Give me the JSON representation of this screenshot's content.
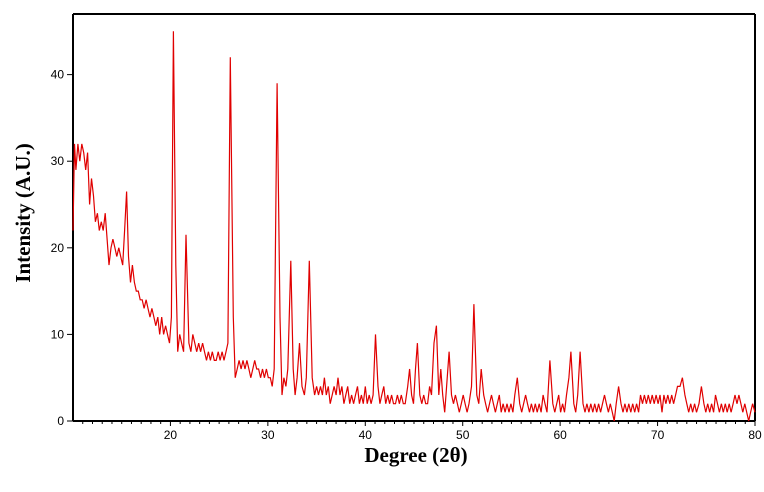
{
  "chart_data": {
    "type": "line",
    "title": "",
    "xlabel": "Degree (2θ)",
    "ylabel": "Intensity (A.U.)",
    "xlim": [
      10,
      80
    ],
    "ylim": [
      0,
      47
    ],
    "x_ticks": [
      20,
      30,
      40,
      50,
      60,
      70,
      80
    ],
    "y_ticks": [
      0,
      10,
      20,
      30,
      40
    ],
    "grid": false,
    "legend": "none",
    "line_color": "#e00000",
    "series": [
      {
        "name": "",
        "points": [
          [
            10.0,
            22
          ],
          [
            10.15,
            32
          ],
          [
            10.3,
            29
          ],
          [
            10.5,
            32
          ],
          [
            10.7,
            30
          ],
          [
            10.9,
            32
          ],
          [
            11.1,
            31
          ],
          [
            11.3,
            29
          ],
          [
            11.5,
            31
          ],
          [
            11.7,
            25
          ],
          [
            11.9,
            28
          ],
          [
            12.1,
            26
          ],
          [
            12.3,
            23
          ],
          [
            12.5,
            24
          ],
          [
            12.7,
            22
          ],
          [
            12.9,
            23
          ],
          [
            13.1,
            22
          ],
          [
            13.3,
            24
          ],
          [
            13.5,
            21
          ],
          [
            13.7,
            18
          ],
          [
            13.9,
            20
          ],
          [
            14.1,
            21
          ],
          [
            14.3,
            20
          ],
          [
            14.5,
            19
          ],
          [
            14.7,
            20
          ],
          [
            14.9,
            19
          ],
          [
            15.1,
            18
          ],
          [
            15.3,
            22
          ],
          [
            15.5,
            26.5
          ],
          [
            15.7,
            19
          ],
          [
            15.9,
            16
          ],
          [
            16.1,
            18
          ],
          [
            16.3,
            16
          ],
          [
            16.5,
            15
          ],
          [
            16.7,
            15
          ],
          [
            16.9,
            14
          ],
          [
            17.1,
            14
          ],
          [
            17.3,
            13
          ],
          [
            17.5,
            14
          ],
          [
            17.7,
            13
          ],
          [
            17.9,
            12
          ],
          [
            18.1,
            13
          ],
          [
            18.3,
            12
          ],
          [
            18.5,
            11
          ],
          [
            18.7,
            12
          ],
          [
            18.9,
            10
          ],
          [
            19.1,
            12
          ],
          [
            19.3,
            10
          ],
          [
            19.5,
            11
          ],
          [
            19.7,
            10
          ],
          [
            19.9,
            9
          ],
          [
            20.1,
            12
          ],
          [
            20.3,
            45
          ],
          [
            20.55,
            18
          ],
          [
            20.75,
            8
          ],
          [
            20.95,
            10
          ],
          [
            21.15,
            9
          ],
          [
            21.35,
            8
          ],
          [
            21.6,
            21.5
          ],
          [
            21.9,
            9
          ],
          [
            22.1,
            8
          ],
          [
            22.3,
            10
          ],
          [
            22.5,
            9
          ],
          [
            22.7,
            8
          ],
          [
            22.9,
            9
          ],
          [
            23.1,
            8
          ],
          [
            23.3,
            9
          ],
          [
            23.5,
            8
          ],
          [
            23.7,
            7
          ],
          [
            23.9,
            8
          ],
          [
            24.1,
            7
          ],
          [
            24.3,
            8
          ],
          [
            24.5,
            7
          ],
          [
            24.7,
            7
          ],
          [
            24.9,
            8
          ],
          [
            25.1,
            7
          ],
          [
            25.3,
            8
          ],
          [
            25.5,
            7
          ],
          [
            25.7,
            8
          ],
          [
            25.9,
            9
          ],
          [
            26.15,
            42
          ],
          [
            26.45,
            12
          ],
          [
            26.65,
            5
          ],
          [
            26.85,
            6
          ],
          [
            27.05,
            7
          ],
          [
            27.25,
            6
          ],
          [
            27.45,
            7
          ],
          [
            27.65,
            6
          ],
          [
            27.85,
            7
          ],
          [
            28.05,
            6
          ],
          [
            28.25,
            5
          ],
          [
            28.45,
            6
          ],
          [
            28.65,
            7
          ],
          [
            28.85,
            6
          ],
          [
            29.05,
            6
          ],
          [
            29.25,
            5
          ],
          [
            29.45,
            6
          ],
          [
            29.65,
            5
          ],
          [
            29.85,
            6
          ],
          [
            30.05,
            5
          ],
          [
            30.25,
            5
          ],
          [
            30.45,
            4
          ],
          [
            30.65,
            6
          ],
          [
            30.95,
            39
          ],
          [
            31.25,
            12
          ],
          [
            31.45,
            3
          ],
          [
            31.65,
            5
          ],
          [
            31.85,
            4
          ],
          [
            32.05,
            6
          ],
          [
            32.35,
            18.5
          ],
          [
            32.6,
            6
          ],
          [
            32.8,
            3
          ],
          [
            33.0,
            5
          ],
          [
            33.25,
            9
          ],
          [
            33.5,
            4
          ],
          [
            33.75,
            3
          ],
          [
            33.95,
            5
          ],
          [
            34.25,
            18.5
          ],
          [
            34.55,
            5
          ],
          [
            34.8,
            3
          ],
          [
            35.0,
            4
          ],
          [
            35.2,
            3
          ],
          [
            35.4,
            4
          ],
          [
            35.6,
            3
          ],
          [
            35.8,
            5
          ],
          [
            36.0,
            3
          ],
          [
            36.2,
            4
          ],
          [
            36.4,
            2
          ],
          [
            36.6,
            3
          ],
          [
            36.8,
            4
          ],
          [
            37.0,
            3
          ],
          [
            37.2,
            5
          ],
          [
            37.4,
            3
          ],
          [
            37.6,
            4
          ],
          [
            37.8,
            2
          ],
          [
            38.0,
            3
          ],
          [
            38.2,
            4
          ],
          [
            38.4,
            2
          ],
          [
            38.6,
            3
          ],
          [
            38.8,
            2
          ],
          [
            39.0,
            3
          ],
          [
            39.2,
            4
          ],
          [
            39.4,
            2
          ],
          [
            39.6,
            3
          ],
          [
            39.8,
            2
          ],
          [
            40.0,
            4
          ],
          [
            40.2,
            2
          ],
          [
            40.4,
            3
          ],
          [
            40.6,
            2
          ],
          [
            40.8,
            3
          ],
          [
            41.05,
            10
          ],
          [
            41.3,
            4
          ],
          [
            41.5,
            2
          ],
          [
            41.7,
            3
          ],
          [
            41.9,
            4
          ],
          [
            42.1,
            2
          ],
          [
            42.3,
            3
          ],
          [
            42.5,
            2
          ],
          [
            42.7,
            3
          ],
          [
            42.9,
            2
          ],
          [
            43.1,
            2
          ],
          [
            43.3,
            3
          ],
          [
            43.5,
            2
          ],
          [
            43.7,
            3
          ],
          [
            43.9,
            2
          ],
          [
            44.1,
            2
          ],
          [
            44.35,
            4
          ],
          [
            44.55,
            6
          ],
          [
            44.75,
            3
          ],
          [
            44.95,
            2
          ],
          [
            45.15,
            6
          ],
          [
            45.35,
            9
          ],
          [
            45.6,
            3
          ],
          [
            45.8,
            2
          ],
          [
            46.0,
            3
          ],
          [
            46.2,
            2
          ],
          [
            46.4,
            2
          ],
          [
            46.6,
            4
          ],
          [
            46.8,
            3
          ],
          [
            47.05,
            9
          ],
          [
            47.3,
            11
          ],
          [
            47.55,
            3
          ],
          [
            47.75,
            6
          ],
          [
            47.95,
            3
          ],
          [
            48.15,
            1
          ],
          [
            48.35,
            4
          ],
          [
            48.6,
            8
          ],
          [
            48.85,
            3
          ],
          [
            49.05,
            2
          ],
          [
            49.25,
            3
          ],
          [
            49.45,
            2
          ],
          [
            49.65,
            1
          ],
          [
            49.85,
            2
          ],
          [
            50.05,
            3
          ],
          [
            50.25,
            2
          ],
          [
            50.45,
            1
          ],
          [
            50.65,
            2
          ],
          [
            50.9,
            4
          ],
          [
            51.15,
            13.5
          ],
          [
            51.45,
            3
          ],
          [
            51.65,
            2
          ],
          [
            51.9,
            6
          ],
          [
            52.15,
            3
          ],
          [
            52.35,
            2
          ],
          [
            52.55,
            1
          ],
          [
            52.75,
            2
          ],
          [
            52.95,
            3
          ],
          [
            53.15,
            2
          ],
          [
            53.35,
            1
          ],
          [
            53.55,
            2
          ],
          [
            53.75,
            3
          ],
          [
            53.95,
            1
          ],
          [
            54.15,
            2
          ],
          [
            54.35,
            1
          ],
          [
            54.55,
            2
          ],
          [
            54.75,
            1
          ],
          [
            54.95,
            2
          ],
          [
            55.15,
            1
          ],
          [
            55.35,
            3
          ],
          [
            55.6,
            5
          ],
          [
            55.85,
            2
          ],
          [
            56.05,
            1
          ],
          [
            56.25,
            2
          ],
          [
            56.45,
            3
          ],
          [
            56.65,
            2
          ],
          [
            56.85,
            1
          ],
          [
            57.05,
            2
          ],
          [
            57.25,
            1
          ],
          [
            57.45,
            2
          ],
          [
            57.65,
            1
          ],
          [
            57.85,
            2
          ],
          [
            58.05,
            1
          ],
          [
            58.25,
            3
          ],
          [
            58.45,
            2
          ],
          [
            58.65,
            1
          ],
          [
            58.95,
            7
          ],
          [
            59.25,
            2
          ],
          [
            59.45,
            1
          ],
          [
            59.65,
            2
          ],
          [
            59.85,
            3
          ],
          [
            60.05,
            1
          ],
          [
            60.25,
            2
          ],
          [
            60.45,
            1
          ],
          [
            60.65,
            3
          ],
          [
            60.9,
            5
          ],
          [
            61.1,
            8
          ],
          [
            61.4,
            2
          ],
          [
            61.6,
            1
          ],
          [
            61.8,
            3
          ],
          [
            62.05,
            8
          ],
          [
            62.35,
            2
          ],
          [
            62.55,
            1
          ],
          [
            62.75,
            2
          ],
          [
            62.95,
            1
          ],
          [
            63.15,
            2
          ],
          [
            63.35,
            1
          ],
          [
            63.55,
            2
          ],
          [
            63.75,
            1
          ],
          [
            63.95,
            2
          ],
          [
            64.15,
            1
          ],
          [
            64.35,
            2
          ],
          [
            64.55,
            3
          ],
          [
            64.75,
            2
          ],
          [
            64.95,
            1
          ],
          [
            65.15,
            2
          ],
          [
            65.35,
            1
          ],
          [
            65.55,
            0
          ],
          [
            65.75,
            2
          ],
          [
            66.0,
            4
          ],
          [
            66.25,
            2
          ],
          [
            66.45,
            1
          ],
          [
            66.65,
            2
          ],
          [
            66.85,
            1
          ],
          [
            67.05,
            2
          ],
          [
            67.25,
            1
          ],
          [
            67.45,
            2
          ],
          [
            67.65,
            1
          ],
          [
            67.85,
            2
          ],
          [
            68.05,
            1
          ],
          [
            68.25,
            3
          ],
          [
            68.45,
            2
          ],
          [
            68.65,
            3
          ],
          [
            68.85,
            2
          ],
          [
            69.05,
            3
          ],
          [
            69.25,
            2
          ],
          [
            69.45,
            3
          ],
          [
            69.65,
            2
          ],
          [
            69.85,
            3
          ],
          [
            70.05,
            2
          ],
          [
            70.25,
            3
          ],
          [
            70.45,
            1
          ],
          [
            70.65,
            3
          ],
          [
            70.85,
            2
          ],
          [
            71.05,
            3
          ],
          [
            71.25,
            2
          ],
          [
            71.45,
            3
          ],
          [
            71.65,
            2
          ],
          [
            71.85,
            3
          ],
          [
            72.05,
            4
          ],
          [
            72.3,
            4
          ],
          [
            72.55,
            5
          ],
          [
            72.8,
            3
          ],
          [
            73.0,
            2
          ],
          [
            73.2,
            1
          ],
          [
            73.4,
            2
          ],
          [
            73.6,
            1
          ],
          [
            73.8,
            2
          ],
          [
            74.0,
            1
          ],
          [
            74.25,
            2
          ],
          [
            74.5,
            4
          ],
          [
            74.75,
            2
          ],
          [
            74.95,
            1
          ],
          [
            75.15,
            2
          ],
          [
            75.35,
            1
          ],
          [
            75.55,
            2
          ],
          [
            75.75,
            1
          ],
          [
            75.95,
            3
          ],
          [
            76.15,
            2
          ],
          [
            76.35,
            1
          ],
          [
            76.55,
            2
          ],
          [
            76.75,
            1
          ],
          [
            76.95,
            2
          ],
          [
            77.15,
            1
          ],
          [
            77.35,
            2
          ],
          [
            77.55,
            1
          ],
          [
            77.75,
            2
          ],
          [
            77.95,
            3
          ],
          [
            78.15,
            2
          ],
          [
            78.35,
            3
          ],
          [
            78.55,
            2
          ],
          [
            78.75,
            1
          ],
          [
            78.95,
            2
          ],
          [
            79.15,
            1
          ],
          [
            79.35,
            0
          ],
          [
            79.55,
            1
          ],
          [
            79.75,
            2
          ],
          [
            80.0,
            1
          ]
        ]
      }
    ]
  }
}
